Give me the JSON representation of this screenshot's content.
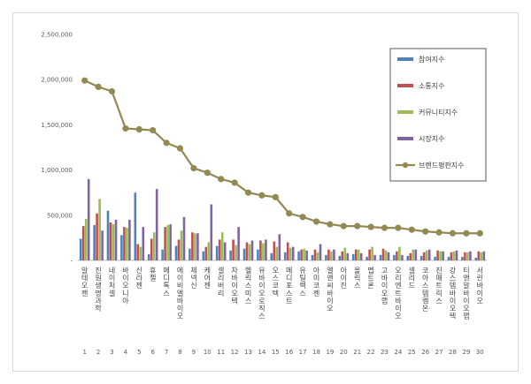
{
  "chart_data": {
    "type": "bar",
    "title": "",
    "xlabel": "",
    "ylabel": "",
    "ylim": [
      0,
      2500000
    ],
    "yticks": [
      0,
      500000,
      1000000,
      1500000,
      2000000,
      2500000
    ],
    "ytick_labels": [
      "-",
      "500,000",
      "1,000,000",
      "1,500,000",
      "2,000,000",
      "2,500,000"
    ],
    "grid": false,
    "legend_position": "right",
    "categories": [
      "알테오젠",
      "진원생명과학",
      "네이처셀",
      "바이오니아",
      "신라젠",
      "휴젤",
      "메디톡스",
      "에이비엘바이오",
      "제넥신",
      "케어젠",
      "셀리버리",
      "차바이오텍",
      "헬릭스미스",
      "유바이오로직스",
      "오스코텍",
      "메디포스트",
      "유틸렉스",
      "아미코젠",
      "엘앤씨바이오",
      "아이진",
      "올릭스",
      "펩트론",
      "고바이오랩",
      "오리엔트바이오",
      "셀리드",
      "코아스템켐온",
      "진매트릭스",
      "강스템바이오텍",
      "티앤알바이오팹",
      "서린바이오"
    ],
    "rank_labels": [
      "1",
      "2",
      "3",
      "4",
      "5",
      "6",
      "7",
      "8",
      "9",
      "10",
      "11",
      "12",
      "13",
      "14",
      "15",
      "16",
      "17",
      "18",
      "19",
      "20",
      "21",
      "22",
      "23",
      "24",
      "25",
      "26",
      "27",
      "28",
      "29",
      "30"
    ],
    "series": [
      {
        "name": "참여지수",
        "color": "#4f81bd",
        "kind": "bar",
        "values": [
          240000,
          390000,
          550000,
          280000,
          750000,
          70000,
          120000,
          160000,
          130000,
          100000,
          160000,
          110000,
          130000,
          120000,
          80000,
          90000,
          100000,
          60000,
          60000,
          50000,
          70000,
          40000,
          60000,
          60000,
          50000,
          50000,
          40000,
          40000,
          40000,
          30000
        ]
      },
      {
        "name": "소통지수",
        "color": "#c0504d",
        "kind": "bar",
        "values": [
          380000,
          520000,
          420000,
          370000,
          180000,
          240000,
          370000,
          230000,
          310000,
          150000,
          230000,
          230000,
          200000,
          220000,
          210000,
          200000,
          120000,
          120000,
          120000,
          100000,
          120000,
          120000,
          130000,
          100000,
          80000,
          90000,
          110000,
          90000,
          90000,
          100000
        ]
      },
      {
        "name": "커뮤니티지수",
        "color": "#9bbb59",
        "kind": "bar",
        "values": [
          460000,
          680000,
          400000,
          360000,
          150000,
          310000,
          390000,
          330000,
          300000,
          200000,
          310000,
          170000,
          180000,
          190000,
          150000,
          140000,
          130000,
          90000,
          100000,
          140000,
          120000,
          150000,
          110000,
          150000,
          120000,
          110000,
          100000,
          100000,
          90000,
          90000
        ]
      },
      {
        "name": "시장지수",
        "color": "#8064a2",
        "kind": "bar",
        "values": [
          900000,
          330000,
          450000,
          450000,
          370000,
          790000,
          400000,
          480000,
          300000,
          620000,
          200000,
          370000,
          220000,
          230000,
          290000,
          150000,
          110000,
          180000,
          120000,
          80000,
          80000,
          60000,
          90000,
          60000,
          120000,
          120000,
          100000,
          110000,
          100000,
          100000
        ]
      },
      {
        "name": "브랜드평판지수",
        "color": "#938953",
        "kind": "line",
        "values": [
          1990000,
          1920000,
          1870000,
          1460000,
          1450000,
          1440000,
          1300000,
          1240000,
          1020000,
          970000,
          900000,
          860000,
          750000,
          720000,
          700000,
          520000,
          480000,
          430000,
          400000,
          380000,
          380000,
          370000,
          360000,
          360000,
          340000,
          320000,
          310000,
          300000,
          300000,
          300000
        ]
      }
    ]
  }
}
